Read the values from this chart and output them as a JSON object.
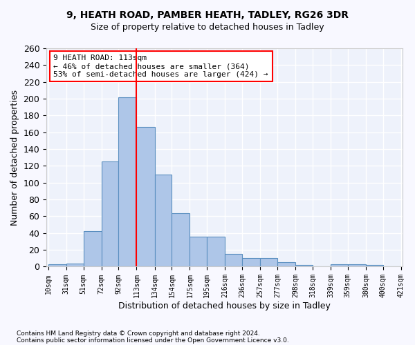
{
  "title_line1": "9, HEATH ROAD, PAMBER HEATH, TADLEY, RG26 3DR",
  "title_line2": "Size of property relative to detached houses in Tadley",
  "xlabel": "Distribution of detached houses by size in Tadley",
  "ylabel": "Number of detached properties",
  "bar_color": "#aec6e8",
  "bar_edge_color": "#5a8fc0",
  "background_color": "#eef2fb",
  "grid_color": "#ffffff",
  "annotation_line_color": "red",
  "annotation_text": "9 HEATH ROAD: 113sqm\n← 46% of detached houses are smaller (364)\n53% of semi-detached houses are larger (424) →",
  "property_size": 113,
  "footnote1": "Contains HM Land Registry data © Crown copyright and database right 2024.",
  "footnote2": "Contains public sector information licensed under the Open Government Licence v3.0.",
  "bin_edges": [
    10,
    31,
    51,
    72,
    92,
    113,
    134,
    154,
    175,
    195,
    216,
    236,
    257,
    277,
    298,
    318,
    339,
    359,
    380,
    400,
    421
  ],
  "bar_heights": [
    3,
    4,
    42,
    125,
    202,
    166,
    110,
    64,
    36,
    36,
    15,
    10,
    10,
    5,
    2,
    0,
    3,
    3,
    2,
    0
  ],
  "tick_labels": [
    "10sqm",
    "31sqm",
    "51sqm",
    "72sqm",
    "92sqm",
    "113sqm",
    "134sqm",
    "154sqm",
    "175sqm",
    "195sqm",
    "216sqm",
    "236sqm",
    "257sqm",
    "277sqm",
    "298sqm",
    "318sqm",
    "339sqm",
    "359sqm",
    "380sqm",
    "400sqm",
    "421sqm"
  ],
  "ylim": [
    0,
    260
  ],
  "yticks": [
    0,
    20,
    40,
    60,
    80,
    100,
    120,
    140,
    160,
    180,
    200,
    220,
    240,
    260
  ]
}
